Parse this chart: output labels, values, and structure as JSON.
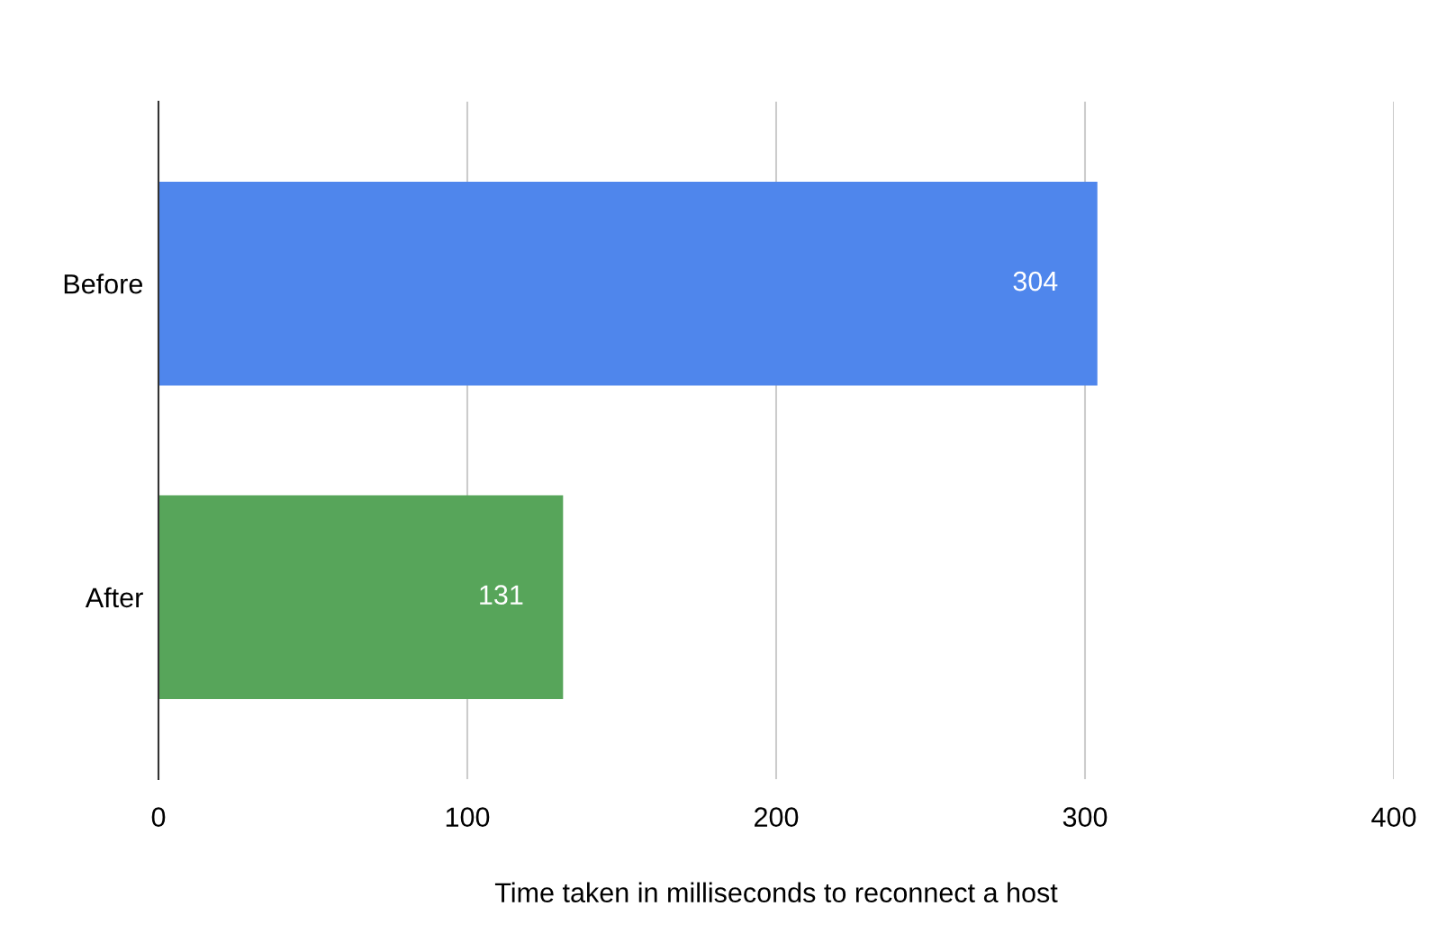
{
  "chart_data": {
    "type": "bar",
    "orientation": "horizontal",
    "categories": [
      "Before",
      "After"
    ],
    "values": [
      304,
      131
    ],
    "colors": [
      "#4f86ec",
      "#57a55a"
    ],
    "xlim": [
      0,
      400
    ],
    "xticks": [
      0,
      100,
      200,
      300,
      400
    ],
    "grid": "x",
    "data_labels": true,
    "xlabel": "Time taken in milliseconds to reconnect a host"
  }
}
